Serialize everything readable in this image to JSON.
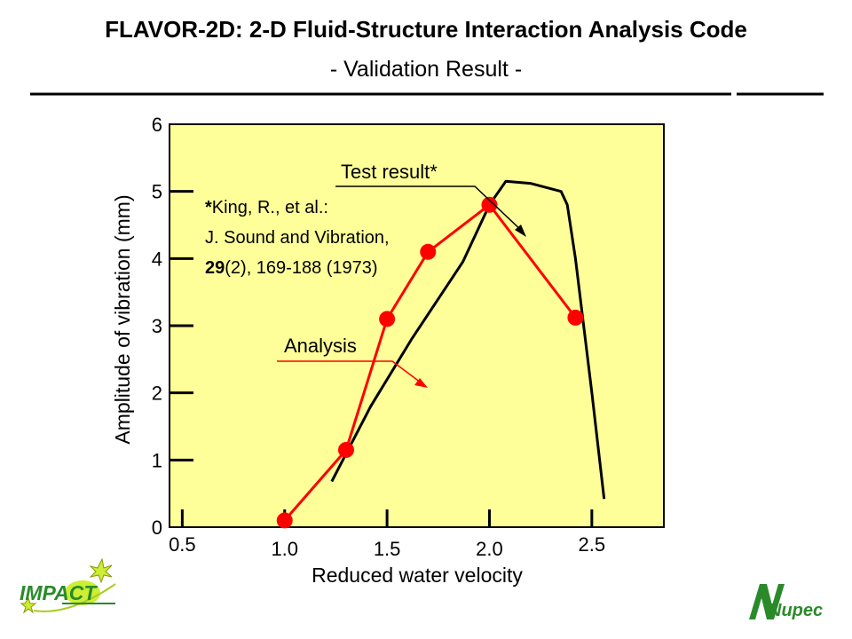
{
  "header": {
    "title": "FLAVOR-2D: 2-D Fluid-Structure Interaction Analysis Code",
    "subtitle": "- Validation Result -"
  },
  "logos": {
    "left_text": "IMPACT",
    "right_text": "Nupec"
  },
  "chart_data": {
    "type": "line",
    "title": "",
    "xlabel": "Reduced water velocity",
    "ylabel": "Amplitude of vibration (mm)",
    "xlim": [
      0.0,
      2.7
    ],
    "ylim": [
      0,
      6
    ],
    "x_ticks": [
      0.5,
      1.0,
      1.5,
      2.0,
      2.5
    ],
    "x_tick_labels": [
      "0.5",
      "1.0",
      "1.5",
      "2.0",
      "2.5"
    ],
    "y_ticks": [
      0,
      1,
      2,
      3,
      4,
      5,
      6
    ],
    "y_tick_labels": [
      "0",
      "1",
      "2",
      "3",
      "4",
      "5",
      "6"
    ],
    "grid": false,
    "plot_background": "#ffff99",
    "series": [
      {
        "name": "Test result*",
        "color": "#000000",
        "marker": "none",
        "x": [
          1.23,
          1.42,
          1.62,
          1.87,
          2.0,
          2.08,
          2.2,
          2.35,
          2.38,
          2.42,
          2.5,
          2.56
        ],
        "y": [
          0.68,
          1.8,
          2.8,
          3.95,
          4.8,
          5.15,
          5.12,
          5.0,
          4.8,
          4.0,
          2.0,
          0.42
        ]
      },
      {
        "name": "Analysis",
        "color": "#ff0000",
        "marker": "circle",
        "x": [
          1.0,
          1.3,
          1.5,
          1.7,
          2.0,
          2.42
        ],
        "y": [
          0.1,
          1.15,
          3.1,
          4.1,
          4.8,
          3.12
        ]
      }
    ],
    "annotations": {
      "test_label": "Test result*",
      "analysis_label": "Analysis",
      "reference": {
        "line1_prefix": "*",
        "line1_text": "King, R., et al.:",
        "line2": "J. Sound and Vibration,",
        "line3_bold": "29",
        "line3_rest": "(2), 169-188 (1973)"
      }
    }
  }
}
